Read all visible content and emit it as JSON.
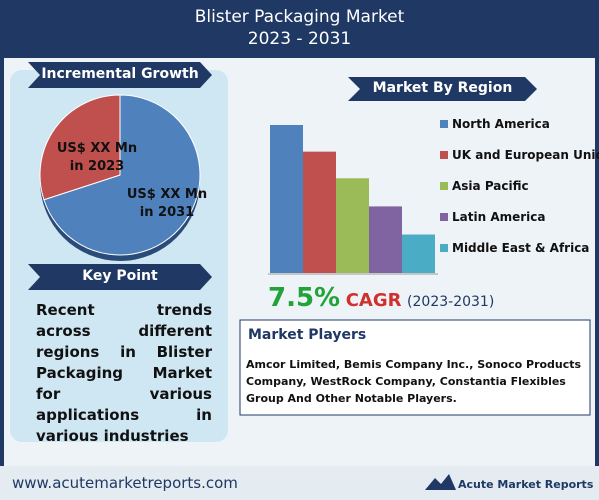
{
  "header": {
    "title": "Blister Packaging Market",
    "subtitle": "2023 - 2031"
  },
  "incremental_growth": {
    "title": "Incremental Growth",
    "type": "pie",
    "slices": [
      {
        "label": "US$ XX Mn in 2023",
        "value": 30,
        "color": "#c0504d"
      },
      {
        "label": "US$ XX Mn in 2031",
        "value": 70,
        "color": "#4f81bd"
      }
    ]
  },
  "key_point": {
    "title": "Key Point",
    "text": "Recent trends across different regions in Blister Packaging Market for various applications in various industries"
  },
  "market_by_region": {
    "title": "Market By Region",
    "type": "bar",
    "series": [
      {
        "name": "North America",
        "color": "#4f81bd",
        "value": 100
      },
      {
        "name": "UK and European Union",
        "color": "#c0504d",
        "value": 82
      },
      {
        "name": "Asia Pacific",
        "color": "#9bbb59",
        "value": 64
      },
      {
        "name": "Latin America",
        "color": "#8064a2",
        "value": 45
      },
      {
        "name": "Middle East & Africa",
        "color": "#4bacc6",
        "value": 26
      }
    ]
  },
  "cagr": {
    "value": "7.5%",
    "label": "CAGR",
    "period": "(2023-2031)"
  },
  "market_players": {
    "title": "Market Players",
    "text": "Amcor Limited, Bemis Company Inc., Sonoco Products Company, WestRock Company, Constantia Flexibles Group And Other Notable Players."
  },
  "footer": {
    "url": "www.acutemarketreports.com",
    "brand": "Acute Market Reports"
  }
}
